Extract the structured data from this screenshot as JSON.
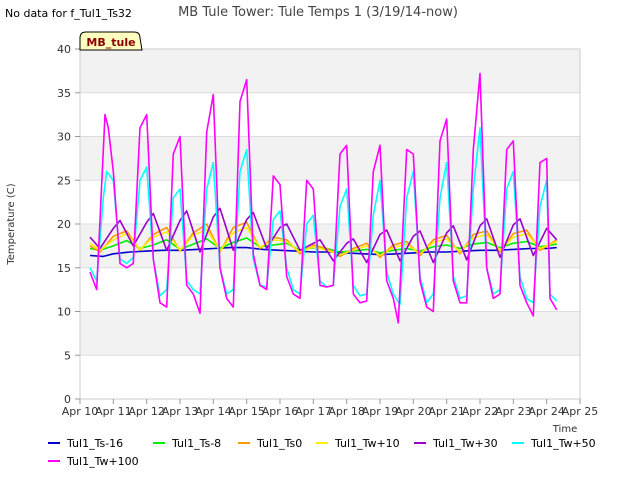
{
  "no_data_note": "No data for f_Tul1_Ts32",
  "site_tag": "MB_tule",
  "chart_data": {
    "type": "line",
    "title": "MB Tule Tower: Tule Temps 1 (3/19/14-now)",
    "xlabel": "Time",
    "ylabel": "Temperature (C)",
    "xlim": [
      10,
      25
    ],
    "ylim": [
      0,
      40
    ],
    "x_ticks": [
      10,
      11,
      12,
      13,
      14,
      15,
      16,
      17,
      18,
      19,
      20,
      21,
      22,
      23,
      24,
      25
    ],
    "x_tick_labels": [
      "Apr 10",
      "Apr 11",
      "Apr 12",
      "Apr 13",
      "Apr 14",
      "Apr 15",
      "Apr 16",
      "Apr 17",
      "Apr 18",
      "Apr 19",
      "Apr 20",
      "Apr 21",
      "Apr 22",
      "Apr 23",
      "Apr 24",
      "Apr 25"
    ],
    "y_ticks": [
      0,
      5,
      10,
      15,
      20,
      25,
      30,
      35,
      40
    ],
    "y_tick_labels": [
      "0",
      "5",
      "10",
      "15",
      "20",
      "25",
      "30",
      "35",
      "40"
    ],
    "grid": true,
    "series": [
      {
        "name": "Tul1_Ts-16",
        "color": "#0000cc",
        "x": [
          10.3,
          10.7,
          11.0,
          11.5,
          12.0,
          12.5,
          13.0,
          13.5,
          14.0,
          14.5,
          15.0,
          15.5,
          16.0,
          16.5,
          17.0,
          17.5,
          18.0,
          18.5,
          19.0,
          19.5,
          20.0,
          20.5,
          21.0,
          21.5,
          22.0,
          22.5,
          23.0,
          23.5,
          24.0,
          24.3
        ],
        "values": [
          16.4,
          16.3,
          16.6,
          16.8,
          16.9,
          17.0,
          17.0,
          17.1,
          17.2,
          17.3,
          17.3,
          17.1,
          17.0,
          16.9,
          16.8,
          16.8,
          16.7,
          16.6,
          16.5,
          16.6,
          16.7,
          16.8,
          16.8,
          16.9,
          17.0,
          17.0,
          17.1,
          17.2,
          17.2,
          17.3
        ]
      },
      {
        "name": "Tul1_Ts-8",
        "color": "#00ee00",
        "x": [
          10.3,
          10.6,
          11.0,
          11.4,
          11.8,
          12.2,
          12.6,
          13.0,
          13.4,
          13.8,
          14.2,
          14.6,
          15.0,
          15.4,
          15.8,
          16.2,
          16.6,
          17.0,
          17.4,
          17.8,
          18.2,
          18.6,
          19.0,
          19.4,
          19.8,
          20.2,
          20.6,
          21.0,
          21.4,
          21.8,
          22.2,
          22.6,
          23.0,
          23.4,
          23.8,
          24.3
        ],
        "values": [
          17.2,
          17.0,
          17.5,
          18.1,
          17.2,
          17.6,
          18.2,
          17.1,
          17.7,
          18.3,
          17.2,
          17.9,
          18.4,
          17.4,
          17.6,
          17.8,
          17.0,
          17.3,
          17.2,
          16.8,
          16.9,
          17.1,
          16.7,
          17.0,
          17.2,
          16.9,
          17.4,
          17.6,
          17.2,
          17.7,
          17.9,
          17.3,
          17.8,
          18.0,
          17.4,
          17.7
        ]
      },
      {
        "name": "Tul1_Ts0",
        "color": "#ff9900",
        "x": [
          10.3,
          10.6,
          11.0,
          11.4,
          11.8,
          12.2,
          12.6,
          13.0,
          13.4,
          13.8,
          14.2,
          14.6,
          15.0,
          15.4,
          15.8,
          16.2,
          16.6,
          17.0,
          17.4,
          17.8,
          18.2,
          18.6,
          19.0,
          19.4,
          19.8,
          20.2,
          20.6,
          21.0,
          21.4,
          21.8,
          22.2,
          22.6,
          23.0,
          23.4,
          23.8,
          24.3
        ],
        "values": [
          17.5,
          16.8,
          18.6,
          19.2,
          17.0,
          18.8,
          19.6,
          16.9,
          19.0,
          20.0,
          16.8,
          19.6,
          20.2,
          17.2,
          18.5,
          18.2,
          16.6,
          17.6,
          17.2,
          16.3,
          17.2,
          17.8,
          16.2,
          17.6,
          18.0,
          16.4,
          18.2,
          18.7,
          16.6,
          18.8,
          19.2,
          16.8,
          18.9,
          19.3,
          17.0,
          18.2
        ]
      },
      {
        "name": "Tul1_Tw+10",
        "color": "#ffee00",
        "x": [
          10.3,
          10.6,
          11.0,
          11.4,
          11.8,
          12.2,
          12.6,
          13.0,
          13.4,
          13.8,
          14.2,
          14.6,
          15.0,
          15.4,
          15.8,
          16.2,
          16.6,
          17.0,
          17.4,
          17.8,
          18.2,
          18.6,
          19.0,
          19.4,
          19.8,
          20.2,
          20.6,
          21.0,
          21.4,
          21.8,
          22.2,
          22.6,
          23.0,
          23.4,
          23.8,
          24.3
        ],
        "values": [
          17.8,
          17.0,
          18.2,
          18.9,
          17.1,
          18.5,
          19.1,
          17.0,
          18.7,
          19.4,
          16.9,
          19.0,
          19.6,
          17.3,
          18.2,
          18.0,
          16.8,
          17.4,
          17.0,
          16.5,
          17.0,
          17.5,
          16.4,
          17.3,
          17.7,
          16.6,
          17.9,
          18.3,
          16.8,
          18.4,
          18.8,
          17.0,
          18.5,
          18.9,
          17.2,
          18.0
        ]
      },
      {
        "name": "Tul1_Tw+30",
        "color": "#9900cc",
        "x": [
          10.3,
          10.6,
          11.0,
          11.2,
          11.6,
          12.0,
          12.2,
          12.6,
          13.0,
          13.2,
          13.6,
          14.0,
          14.2,
          14.6,
          15.0,
          15.2,
          15.6,
          16.0,
          16.2,
          16.6,
          17.0,
          17.2,
          17.6,
          18.0,
          18.2,
          18.6,
          19.0,
          19.2,
          19.6,
          20.0,
          20.2,
          20.6,
          21.0,
          21.2,
          21.6,
          22.0,
          22.2,
          22.6,
          23.0,
          23.2,
          23.6,
          24.0,
          24.3
        ],
        "values": [
          18.5,
          17.2,
          19.5,
          20.4,
          17.5,
          20.2,
          21.2,
          17.0,
          20.4,
          21.5,
          16.8,
          20.8,
          21.8,
          17.0,
          20.5,
          21.3,
          17.2,
          19.6,
          20.0,
          17.0,
          17.8,
          18.2,
          15.8,
          17.8,
          18.3,
          15.6,
          18.8,
          19.3,
          15.8,
          18.6,
          19.2,
          15.6,
          19.0,
          19.8,
          15.9,
          19.8,
          20.6,
          16.2,
          19.9,
          20.6,
          16.4,
          19.5,
          18.2
        ]
      },
      {
        "name": "Tul1_Tw+50",
        "color": "#00ffff",
        "x": [
          10.3,
          10.5,
          10.7,
          10.8,
          11.0,
          11.2,
          11.4,
          11.6,
          11.8,
          12.0,
          12.2,
          12.4,
          12.6,
          12.8,
          13.0,
          13.2,
          13.4,
          13.6,
          13.8,
          14.0,
          14.2,
          14.4,
          14.6,
          14.8,
          15.0,
          15.2,
          15.4,
          15.6,
          15.8,
          16.0,
          16.2,
          16.4,
          16.6,
          16.8,
          17.0,
          17.2,
          17.4,
          17.6,
          17.8,
          18.0,
          18.2,
          18.4,
          18.6,
          18.8,
          19.0,
          19.2,
          19.4,
          19.6,
          19.8,
          20.0,
          20.2,
          20.4,
          20.6,
          20.8,
          21.0,
          21.2,
          21.4,
          21.6,
          21.8,
          22.0,
          22.2,
          22.4,
          22.6,
          22.8,
          23.0,
          23.2,
          23.4,
          23.6,
          23.8,
          24.0,
          24.1,
          24.3
        ],
        "values": [
          15.0,
          13.5,
          23.0,
          26.0,
          25.0,
          16.0,
          15.5,
          16.2,
          25.0,
          26.5,
          16.0,
          11.8,
          12.5,
          23.0,
          24.0,
          13.5,
          12.5,
          12.0,
          24.0,
          27.0,
          15.0,
          12.0,
          12.5,
          26.0,
          28.5,
          16.0,
          13.0,
          12.8,
          20.5,
          21.5,
          15.0,
          12.5,
          12.0,
          20.0,
          21.0,
          13.5,
          12.8,
          13.0,
          22.0,
          24.0,
          13.0,
          11.8,
          12.0,
          21.0,
          25.0,
          14.5,
          12.0,
          10.8,
          23.0,
          26.0,
          14.0,
          11.0,
          12.0,
          23.0,
          27.0,
          14.0,
          11.5,
          11.8,
          24.0,
          31.0,
          15.0,
          12.0,
          12.5,
          24.0,
          26.0,
          14.0,
          11.5,
          11.0,
          22.0,
          25.0,
          12.0,
          11.2
        ]
      },
      {
        "name": "Tul1_Tw+100",
        "color": "#ff00ff",
        "x": [
          10.3,
          10.5,
          10.75,
          10.85,
          11.0,
          11.2,
          11.4,
          11.6,
          11.8,
          12.0,
          12.2,
          12.4,
          12.6,
          12.8,
          13.0,
          13.2,
          13.4,
          13.6,
          13.8,
          14.0,
          14.2,
          14.4,
          14.6,
          14.8,
          15.0,
          15.2,
          15.4,
          15.6,
          15.8,
          16.0,
          16.2,
          16.4,
          16.6,
          16.8,
          17.0,
          17.2,
          17.4,
          17.6,
          17.8,
          18.0,
          18.2,
          18.4,
          18.6,
          18.8,
          19.0,
          19.2,
          19.4,
          19.55,
          19.8,
          20.0,
          20.2,
          20.4,
          20.6,
          20.8,
          21.0,
          21.2,
          21.4,
          21.6,
          21.8,
          22.0,
          22.2,
          22.4,
          22.6,
          22.8,
          23.0,
          23.2,
          23.4,
          23.6,
          23.8,
          24.0,
          24.1,
          24.3
        ],
        "values": [
          14.5,
          12.5,
          32.5,
          31.0,
          26.0,
          15.5,
          15.0,
          15.5,
          31.0,
          32.5,
          16.0,
          11.0,
          10.5,
          28.0,
          30.0,
          13.0,
          12.0,
          9.8,
          30.5,
          34.8,
          15.0,
          11.5,
          10.5,
          34.0,
          36.5,
          16.5,
          13.0,
          12.5,
          25.5,
          24.5,
          14.0,
          12.0,
          11.5,
          25.0,
          24.0,
          13.0,
          12.8,
          13.0,
          28.0,
          29.0,
          12.0,
          11.0,
          11.2,
          26.0,
          29.0,
          13.5,
          11.5,
          8.7,
          28.5,
          28.0,
          13.5,
          10.5,
          10.0,
          29.5,
          32.0,
          13.5,
          11.0,
          11.0,
          28.5,
          37.2,
          15.0,
          11.5,
          12.0,
          28.5,
          29.5,
          13.0,
          11.0,
          9.5,
          27.0,
          27.5,
          11.5,
          10.2
        ]
      }
    ]
  }
}
